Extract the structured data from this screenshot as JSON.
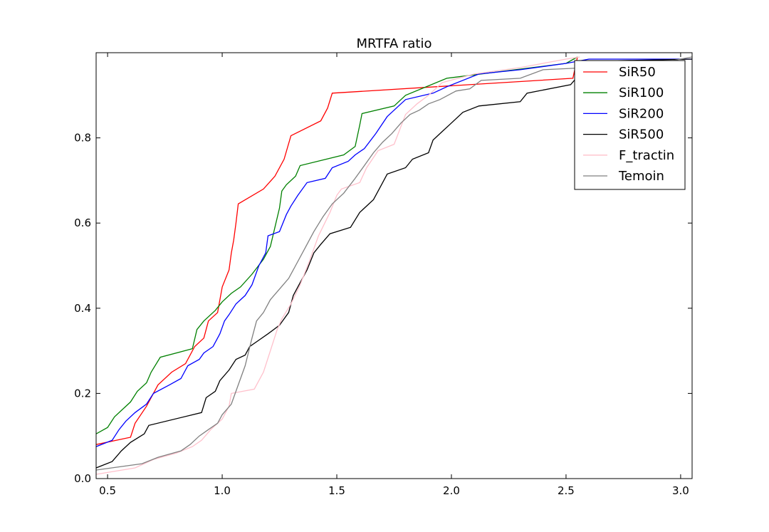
{
  "chart_data": {
    "type": "line",
    "title": "MRTFA ratio",
    "xlabel": "",
    "ylabel": "",
    "xlim": [
      0.45,
      3.05
    ],
    "ylim": [
      0.0,
      1.0
    ],
    "x_ticks": [
      0.5,
      1.0,
      1.5,
      2.0,
      2.5,
      3.0
    ],
    "x_tick_labels": [
      "0.5",
      "1.0",
      "1.5",
      "2.0",
      "2.5",
      "3.0"
    ],
    "y_ticks": [
      0.0,
      0.2,
      0.4,
      0.6,
      0.8
    ],
    "y_tick_labels": [
      "0.0",
      "0.2",
      "0.4",
      "0.6",
      "0.8"
    ],
    "grid": false,
    "legend_position": "top-right",
    "series": [
      {
        "name": "SiR50",
        "color": "#ff0000",
        "points": [
          [
            0.45,
            0.08
          ],
          [
            0.6,
            0.097
          ],
          [
            0.62,
            0.13
          ],
          [
            0.67,
            0.17
          ],
          [
            0.72,
            0.22
          ],
          [
            0.78,
            0.25
          ],
          [
            0.84,
            0.27
          ],
          [
            0.88,
            0.31
          ],
          [
            0.92,
            0.33
          ],
          [
            0.94,
            0.37
          ],
          [
            0.98,
            0.39
          ],
          [
            1.0,
            0.45
          ],
          [
            1.03,
            0.49
          ],
          [
            1.04,
            0.53
          ],
          [
            1.05,
            0.56
          ],
          [
            1.06,
            0.6
          ],
          [
            1.07,
            0.645
          ],
          [
            1.18,
            0.68
          ],
          [
            1.23,
            0.71
          ],
          [
            1.27,
            0.75
          ],
          [
            1.3,
            0.805
          ],
          [
            1.43,
            0.84
          ],
          [
            1.46,
            0.87
          ],
          [
            1.48,
            0.905
          ],
          [
            2.53,
            0.94
          ],
          [
            2.55,
            0.99
          ]
        ]
      },
      {
        "name": "SiR100",
        "color": "#008000",
        "points": [
          [
            0.45,
            0.105
          ],
          [
            0.5,
            0.12
          ],
          [
            0.53,
            0.145
          ],
          [
            0.6,
            0.18
          ],
          [
            0.63,
            0.205
          ],
          [
            0.67,
            0.225
          ],
          [
            0.69,
            0.25
          ],
          [
            0.73,
            0.285
          ],
          [
            0.87,
            0.305
          ],
          [
            0.89,
            0.35
          ],
          [
            0.92,
            0.37
          ],
          [
            0.97,
            0.395
          ],
          [
            1.0,
            0.415
          ],
          [
            1.04,
            0.435
          ],
          [
            1.08,
            0.45
          ],
          [
            1.13,
            0.48
          ],
          [
            1.18,
            0.515
          ],
          [
            1.21,
            0.545
          ],
          [
            1.23,
            0.59
          ],
          [
            1.25,
            0.635
          ],
          [
            1.26,
            0.675
          ],
          [
            1.28,
            0.69
          ],
          [
            1.32,
            0.71
          ],
          [
            1.34,
            0.735
          ],
          [
            1.53,
            0.76
          ],
          [
            1.58,
            0.78
          ],
          [
            1.6,
            0.83
          ],
          [
            1.61,
            0.857
          ],
          [
            1.75,
            0.875
          ],
          [
            1.8,
            0.9
          ],
          [
            1.98,
            0.94
          ],
          [
            2.5,
            0.975
          ],
          [
            2.55,
            0.99
          ]
        ]
      },
      {
        "name": "SiR200",
        "color": "#0000ff",
        "points": [
          [
            0.45,
            0.075
          ],
          [
            0.52,
            0.09
          ],
          [
            0.55,
            0.115
          ],
          [
            0.58,
            0.135
          ],
          [
            0.62,
            0.155
          ],
          [
            0.67,
            0.175
          ],
          [
            0.7,
            0.2
          ],
          [
            0.77,
            0.22
          ],
          [
            0.82,
            0.235
          ],
          [
            0.85,
            0.265
          ],
          [
            0.9,
            0.28
          ],
          [
            0.92,
            0.295
          ],
          [
            0.96,
            0.31
          ],
          [
            0.99,
            0.34
          ],
          [
            1.01,
            0.37
          ],
          [
            1.03,
            0.385
          ],
          [
            1.06,
            0.41
          ],
          [
            1.1,
            0.43
          ],
          [
            1.13,
            0.455
          ],
          [
            1.16,
            0.5
          ],
          [
            1.19,
            0.53
          ],
          [
            1.2,
            0.57
          ],
          [
            1.25,
            0.58
          ],
          [
            1.28,
            0.62
          ],
          [
            1.3,
            0.64
          ],
          [
            1.33,
            0.665
          ],
          [
            1.37,
            0.695
          ],
          [
            1.45,
            0.705
          ],
          [
            1.48,
            0.73
          ],
          [
            1.55,
            0.745
          ],
          [
            1.58,
            0.76
          ],
          [
            1.62,
            0.775
          ],
          [
            1.67,
            0.81
          ],
          [
            1.72,
            0.85
          ],
          [
            1.76,
            0.87
          ],
          [
            1.8,
            0.89
          ],
          [
            1.92,
            0.905
          ],
          [
            1.98,
            0.92
          ],
          [
            2.12,
            0.95
          ],
          [
            2.3,
            0.96
          ],
          [
            2.5,
            0.975
          ],
          [
            2.6,
            0.985
          ],
          [
            3.05,
            0.985
          ]
        ]
      },
      {
        "name": "SiR500",
        "color": "#000000",
        "points": [
          [
            0.45,
            0.025
          ],
          [
            0.52,
            0.04
          ],
          [
            0.56,
            0.065
          ],
          [
            0.6,
            0.085
          ],
          [
            0.66,
            0.105
          ],
          [
            0.68,
            0.125
          ],
          [
            0.91,
            0.155
          ],
          [
            0.93,
            0.19
          ],
          [
            0.97,
            0.205
          ],
          [
            0.99,
            0.23
          ],
          [
            1.03,
            0.255
          ],
          [
            1.06,
            0.28
          ],
          [
            1.1,
            0.29
          ],
          [
            1.12,
            0.31
          ],
          [
            1.16,
            0.325
          ],
          [
            1.2,
            0.34
          ],
          [
            1.25,
            0.36
          ],
          [
            1.29,
            0.39
          ],
          [
            1.31,
            0.43
          ],
          [
            1.34,
            0.46
          ],
          [
            1.37,
            0.49
          ],
          [
            1.4,
            0.53
          ],
          [
            1.43,
            0.55
          ],
          [
            1.47,
            0.575
          ],
          [
            1.56,
            0.59
          ],
          [
            1.6,
            0.625
          ],
          [
            1.66,
            0.655
          ],
          [
            1.7,
            0.695
          ],
          [
            1.72,
            0.715
          ],
          [
            1.8,
            0.73
          ],
          [
            1.83,
            0.75
          ],
          [
            1.9,
            0.765
          ],
          [
            1.92,
            0.795
          ],
          [
            1.96,
            0.815
          ],
          [
            2.0,
            0.835
          ],
          [
            2.05,
            0.86
          ],
          [
            2.12,
            0.875
          ],
          [
            2.3,
            0.885
          ],
          [
            2.33,
            0.905
          ],
          [
            2.52,
            0.925
          ],
          [
            2.56,
            0.95
          ],
          [
            2.6,
            0.98
          ],
          [
            3.05,
            0.985
          ]
        ]
      },
      {
        "name": "F_tractin",
        "color": "#ffc0cb",
        "points": [
          [
            0.45,
            0.01
          ],
          [
            0.62,
            0.025
          ],
          [
            0.7,
            0.045
          ],
          [
            0.8,
            0.06
          ],
          [
            0.87,
            0.075
          ],
          [
            0.91,
            0.09
          ],
          [
            0.95,
            0.115
          ],
          [
            1.0,
            0.14
          ],
          [
            1.03,
            0.17
          ],
          [
            1.04,
            0.2
          ],
          [
            1.14,
            0.21
          ],
          [
            1.18,
            0.25
          ],
          [
            1.21,
            0.3
          ],
          [
            1.24,
            0.35
          ],
          [
            1.26,
            0.375
          ],
          [
            1.3,
            0.41
          ],
          [
            1.34,
            0.455
          ],
          [
            1.38,
            0.51
          ],
          [
            1.42,
            0.57
          ],
          [
            1.47,
            0.625
          ],
          [
            1.5,
            0.665
          ],
          [
            1.52,
            0.68
          ],
          [
            1.6,
            0.695
          ],
          [
            1.63,
            0.73
          ],
          [
            1.68,
            0.77
          ],
          [
            1.75,
            0.785
          ],
          [
            1.8,
            0.855
          ],
          [
            1.85,
            0.88
          ],
          [
            1.9,
            0.9
          ],
          [
            1.96,
            0.93
          ],
          [
            2.1,
            0.95
          ],
          [
            2.3,
            0.965
          ],
          [
            2.5,
            0.985
          ],
          [
            2.56,
            0.99
          ]
        ]
      },
      {
        "name": "Temoin",
        "color": "#808080",
        "points": [
          [
            0.45,
            0.02
          ],
          [
            0.65,
            0.035
          ],
          [
            0.72,
            0.05
          ],
          [
            0.82,
            0.065
          ],
          [
            0.86,
            0.08
          ],
          [
            0.9,
            0.1
          ],
          [
            0.94,
            0.115
          ],
          [
            0.98,
            0.13
          ],
          [
            1.0,
            0.15
          ],
          [
            1.04,
            0.175
          ],
          [
            1.07,
            0.22
          ],
          [
            1.1,
            0.265
          ],
          [
            1.13,
            0.33
          ],
          [
            1.15,
            0.37
          ],
          [
            1.18,
            0.39
          ],
          [
            1.21,
            0.42
          ],
          [
            1.25,
            0.445
          ],
          [
            1.29,
            0.47
          ],
          [
            1.32,
            0.5
          ],
          [
            1.36,
            0.54
          ],
          [
            1.4,
            0.58
          ],
          [
            1.44,
            0.615
          ],
          [
            1.48,
            0.645
          ],
          [
            1.53,
            0.67
          ],
          [
            1.58,
            0.705
          ],
          [
            1.62,
            0.735
          ],
          [
            1.66,
            0.765
          ],
          [
            1.7,
            0.79
          ],
          [
            1.74,
            0.81
          ],
          [
            1.78,
            0.835
          ],
          [
            1.82,
            0.855
          ],
          [
            1.86,
            0.865
          ],
          [
            1.9,
            0.88
          ],
          [
            1.95,
            0.89
          ],
          [
            2.02,
            0.91
          ],
          [
            2.08,
            0.915
          ],
          [
            2.13,
            0.935
          ],
          [
            2.3,
            0.94
          ],
          [
            2.4,
            0.96
          ],
          [
            2.6,
            0.965
          ],
          [
            2.9,
            0.975
          ],
          [
            3.05,
            0.99
          ]
        ]
      }
    ]
  }
}
